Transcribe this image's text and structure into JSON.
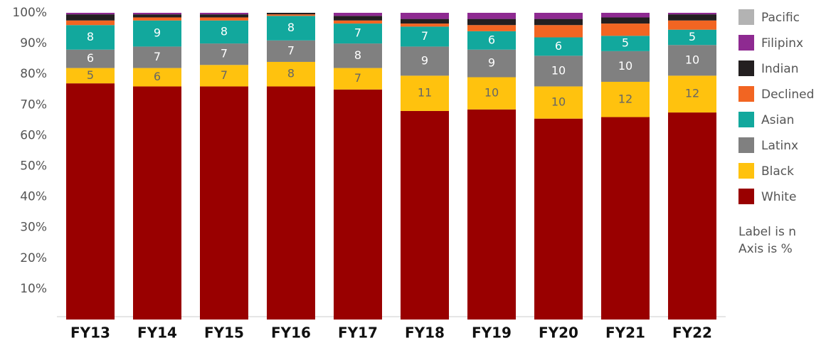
{
  "chart_data": {
    "type": "stacked_bar",
    "categories": [
      "FY13",
      "FY14",
      "FY15",
      "FY16",
      "FY17",
      "FY18",
      "FY19",
      "FY20",
      "FY21",
      "FY22"
    ],
    "series": [
      {
        "name": "White",
        "color": "#990000",
        "values": [
          77,
          76,
          76,
          76,
          75,
          68,
          68.5,
          65.5,
          66,
          67.5
        ]
      },
      {
        "name": "Black",
        "color": "#ffc20e",
        "label_color": "#666666",
        "values": [
          5,
          6,
          7,
          8,
          7,
          11.5,
          10.5,
          10.5,
          11.5,
          12
        ],
        "labels": [
          5,
          6,
          7,
          8,
          7,
          11,
          10,
          10,
          12,
          12
        ]
      },
      {
        "name": "Latinx",
        "color": "#808080",
        "label_color": "#ffffff",
        "values": [
          6,
          7,
          7,
          7,
          8,
          9.5,
          9,
          10,
          10,
          10
        ],
        "labels": [
          6,
          7,
          7,
          7,
          8,
          9,
          9,
          10,
          10,
          10
        ]
      },
      {
        "name": "Asian",
        "color": "#12a89d",
        "label_color": "#ffffff",
        "values": [
          8,
          8.5,
          7.5,
          8,
          6.5,
          6.5,
          6,
          6,
          5,
          5
        ],
        "labels": [
          8,
          9,
          8,
          8,
          7,
          7,
          6,
          6,
          5,
          5
        ]
      },
      {
        "name": "Declined",
        "color": "#f26522",
        "values": [
          1.5,
          1,
          1,
          0.5,
          1,
          1,
          2,
          4,
          4,
          3
        ]
      },
      {
        "name": "Indian",
        "color": "#231f20",
        "values": [
          2,
          1,
          1,
          0.5,
          1.5,
          1.5,
          2,
          2,
          2,
          2
        ]
      },
      {
        "name": "Filipinx",
        "color": "#8e2a91",
        "values": [
          0.5,
          0.5,
          0.5,
          0,
          1,
          2,
          2,
          2,
          1.5,
          0.5
        ]
      },
      {
        "name": "Pacific",
        "color": "#b3b3b3",
        "values": [
          0,
          0,
          0,
          0,
          0,
          0,
          0,
          0,
          0,
          0
        ]
      }
    ],
    "ylim": [
      0,
      100
    ],
    "yticks": [
      {
        "value": 10,
        "label": "10%"
      },
      {
        "value": 20,
        "label": "20%"
      },
      {
        "value": 30,
        "label": "30%"
      },
      {
        "value": 40,
        "label": "40%"
      },
      {
        "value": 50,
        "label": "50%"
      },
      {
        "value": 60,
        "label": "60%"
      },
      {
        "value": 70,
        "label": "70%"
      },
      {
        "value": 80,
        "label": "80%"
      },
      {
        "value": 90,
        "label": "90%"
      },
      {
        "value": 100,
        "label": "100%"
      }
    ],
    "grid": false,
    "legend": "right",
    "annotations": [
      "Label is n",
      "Axis is %"
    ]
  }
}
